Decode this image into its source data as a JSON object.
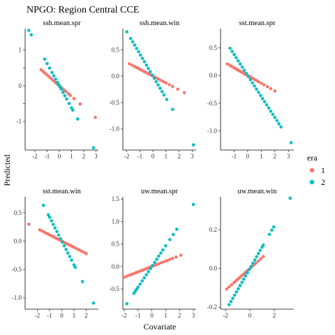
{
  "chart_data": {
    "type": "scatter",
    "title": "NPGO: Region Central CCE",
    "xlabel": "Covariate",
    "ylabel": "Predicted",
    "legend": {
      "title": "era",
      "placement": "right",
      "entries": [
        {
          "name": "1",
          "color": "#F8766D"
        },
        {
          "name": "2",
          "color": "#00BFC4"
        }
      ]
    },
    "grid": false,
    "panels": [
      {
        "title": "ssh.mean.spr",
        "xlim": [
          -2.8,
          3.2
        ],
        "ylim": [
          -1.8,
          1.6
        ],
        "xticks": [
          -2,
          -1,
          0,
          1,
          2,
          3
        ],
        "yticks": [
          -1,
          -0.5,
          0,
          0.5,
          1
        ],
        "ytick_labels": [
          "-1",
          "",
          "0",
          "",
          "1"
        ],
        "series": [
          {
            "name": "1",
            "slope": -0.3,
            "intercept": 0,
            "x": [
              -1.5,
              -1.35,
              -1.2,
              -1.05,
              -0.9,
              -0.75,
              -0.6,
              -0.45,
              -0.3,
              -0.2,
              -0.1,
              0,
              0.1,
              0.25,
              0.4,
              0.55,
              0.75,
              0.9,
              1.2,
              1.7,
              2.95
            ]
          },
          {
            "name": "2",
            "slope": -0.62,
            "intercept": 0,
            "x": [
              -2.5,
              -2.3,
              -1.2,
              -1.0,
              -0.8,
              -0.6,
              -0.45,
              -0.3,
              -0.15,
              -0.05,
              0.05,
              0.15,
              0.3,
              0.45,
              0.6,
              0.8,
              1.0,
              1.1,
              1.5,
              2.8
            ]
          }
        ]
      },
      {
        "title": "ssh.mean.win",
        "xlim": [
          -2.3,
          3.3
        ],
        "ylim": [
          -1.4,
          0.9
        ],
        "xticks": [
          -2,
          -1,
          0,
          1,
          2,
          3
        ],
        "yticks": [
          -1,
          -0.5,
          0,
          0.5
        ],
        "ytick_labels": [
          "-1.0",
          "-0.5",
          "0.0",
          "0.5"
        ],
        "series": [
          {
            "name": "1",
            "slope": -0.13,
            "intercept": 0,
            "x": [
              -1.8,
              -1.6,
              -1.4,
              -1.25,
              -1.1,
              -0.95,
              -0.8,
              -0.65,
              -0.5,
              -0.35,
              -0.2,
              -0.05,
              0.1,
              0.25,
              0.4,
              0.6,
              0.8,
              1.0,
              1.25,
              1.5,
              1.9,
              2.4
            ]
          },
          {
            "name": "2",
            "slope": -0.42,
            "intercept": 0,
            "x": [
              -2.0,
              -1.7,
              -1.55,
              -1.4,
              -1.25,
              -1.1,
              -0.95,
              -0.8,
              -0.65,
              -0.5,
              -0.35,
              -0.2,
              -0.05,
              0.1,
              0.25,
              0.4,
              0.55,
              0.7,
              0.85,
              1.05,
              1.5,
              3.1
            ]
          }
        ]
      },
      {
        "title": "sst.mean.spr",
        "xlim": [
          -2.0,
          3.4
        ],
        "ylim": [
          -1.35,
          0.85
        ],
        "xticks": [
          -1,
          0,
          1,
          2,
          3
        ],
        "yticks": [
          -1,
          -0.5,
          0,
          0.5
        ],
        "ytick_labels": [
          "-1.0",
          "-0.5",
          "0.0",
          "0.5"
        ],
        "series": [
          {
            "name": "1",
            "slope": -0.14,
            "intercept": 0,
            "x": [
              -1.5,
              -1.3,
              -1.15,
              -1.0,
              -0.9,
              -0.8,
              -0.7,
              -0.6,
              -0.5,
              -0.4,
              -0.3,
              -0.2,
              -0.1,
              0,
              0.1,
              0.2,
              0.35,
              0.5,
              0.65,
              0.8,
              1.0,
              1.2,
              1.45,
              1.7,
              2.0
            ]
          },
          {
            "name": "2",
            "slope": -0.38,
            "intercept": 0,
            "x": [
              -1.3,
              -1.15,
              -1.0,
              -0.85,
              -0.7,
              -0.55,
              -0.4,
              -0.25,
              -0.1,
              0.05,
              0.2,
              0.35,
              0.5,
              0.65,
              0.8,
              0.95,
              1.1,
              1.25,
              1.4,
              1.55,
              1.7,
              1.85,
              2.0,
              2.15,
              2.3,
              2.45,
              3.2
            ]
          }
        ]
      },
      {
        "title": "sst.mean.win",
        "xlim": [
          -3.0,
          3.0
        ],
        "ylim": [
          -1.2,
          0.78
        ],
        "xticks": [
          -2,
          -1,
          0,
          1,
          2
        ],
        "yticks": [
          -1,
          -0.5,
          0,
          0.5
        ],
        "ytick_labels": [
          "-1.0",
          "-0.5",
          "0.0",
          "0.5"
        ],
        "series": [
          {
            "name": "1",
            "slope": -0.11,
            "intercept": 0,
            "x": [
              -2.7,
              -1.8,
              -1.6,
              -1.4,
              -1.25,
              -1.1,
              -0.95,
              -0.8,
              -0.65,
              -0.5,
              -0.35,
              -0.2,
              -0.05,
              0.1,
              0.25,
              0.4,
              0.55,
              0.7,
              0.85,
              1.0,
              1.2,
              1.4,
              1.6,
              1.8,
              2.0
            ]
          },
          {
            "name": "2",
            "slope": -0.42,
            "intercept": 0,
            "x": [
              -1.5,
              -1.1,
              -1.0,
              -0.85,
              -0.7,
              -0.55,
              -0.4,
              -0.25,
              -0.1,
              0.05,
              0.2,
              0.35,
              0.5,
              0.65,
              0.8,
              1.0,
              1.1,
              1.7,
              2.6
            ]
          }
        ]
      },
      {
        "title": "uw.mean.spr",
        "xlim": [
          -2.1,
          3.2
        ],
        "ylim": [
          -0.95,
          1.55
        ],
        "xticks": [
          -2,
          -1,
          0,
          1,
          2,
          3
        ],
        "yticks": [
          -0.5,
          0,
          0.5,
          1,
          1.5
        ],
        "ytick_labels": [
          "-0.5",
          "0.0",
          "0.5",
          "1.0",
          "1.5"
        ],
        "series": [
          {
            "name": "1",
            "slope": 0.12,
            "intercept": 0,
            "x": [
              -2.0,
              -1.8,
              -1.6,
              -1.45,
              -1.3,
              -1.15,
              -1.0,
              -0.85,
              -0.7,
              -0.55,
              -0.4,
              -0.25,
              -0.1,
              0.05,
              0.2,
              0.35,
              0.5,
              0.7,
              0.9,
              1.1,
              1.3,
              1.5,
              1.75,
              2.1
            ]
          },
          {
            "name": "2",
            "slope": 0.46,
            "intercept": 0,
            "x": [
              -1.8,
              -1.3,
              -1.2,
              -1.1,
              -1.0,
              -0.85,
              -0.7,
              -0.55,
              -0.4,
              -0.25,
              -0.1,
              0.05,
              0.2,
              0.35,
              0.5,
              0.65,
              0.8,
              1.0,
              1.3,
              1.55,
              1.8,
              3.0
            ]
          }
        ]
      },
      {
        "title": "uw.mean.win",
        "xlim": [
          -2.4,
          3.6
        ],
        "ylim": [
          -0.21,
          0.37
        ],
        "xticks": [
          -2,
          0,
          2
        ],
        "yticks": [
          -0.2,
          0,
          0.2
        ],
        "ytick_labels": [
          "-0.2",
          "0.0",
          "0.2"
        ],
        "series": [
          {
            "name": "1",
            "slope": 0.056,
            "intercept": 0,
            "x": [
              -1.9,
              -1.7,
              -1.5,
              -1.3,
              -1.15,
              -1.0,
              -0.85,
              -0.7,
              -0.55,
              -0.4,
              -0.25,
              -0.1,
              0.05,
              0.2,
              0.35,
              0.5,
              0.7,
              0.9,
              1.1
            ]
          },
          {
            "name": "2",
            "slope": 0.11,
            "intercept": 0,
            "x": [
              -1.7,
              -1.55,
              -1.4,
              -1.25,
              -1.1,
              -0.95,
              -0.8,
              -0.65,
              -0.5,
              -0.35,
              -0.2,
              -0.05,
              0.1,
              0.25,
              0.4,
              0.55,
              0.7,
              0.85,
              1.0,
              1.1,
              1.6,
              1.8,
              1.95,
              3.3
            ]
          }
        ]
      }
    ]
  }
}
